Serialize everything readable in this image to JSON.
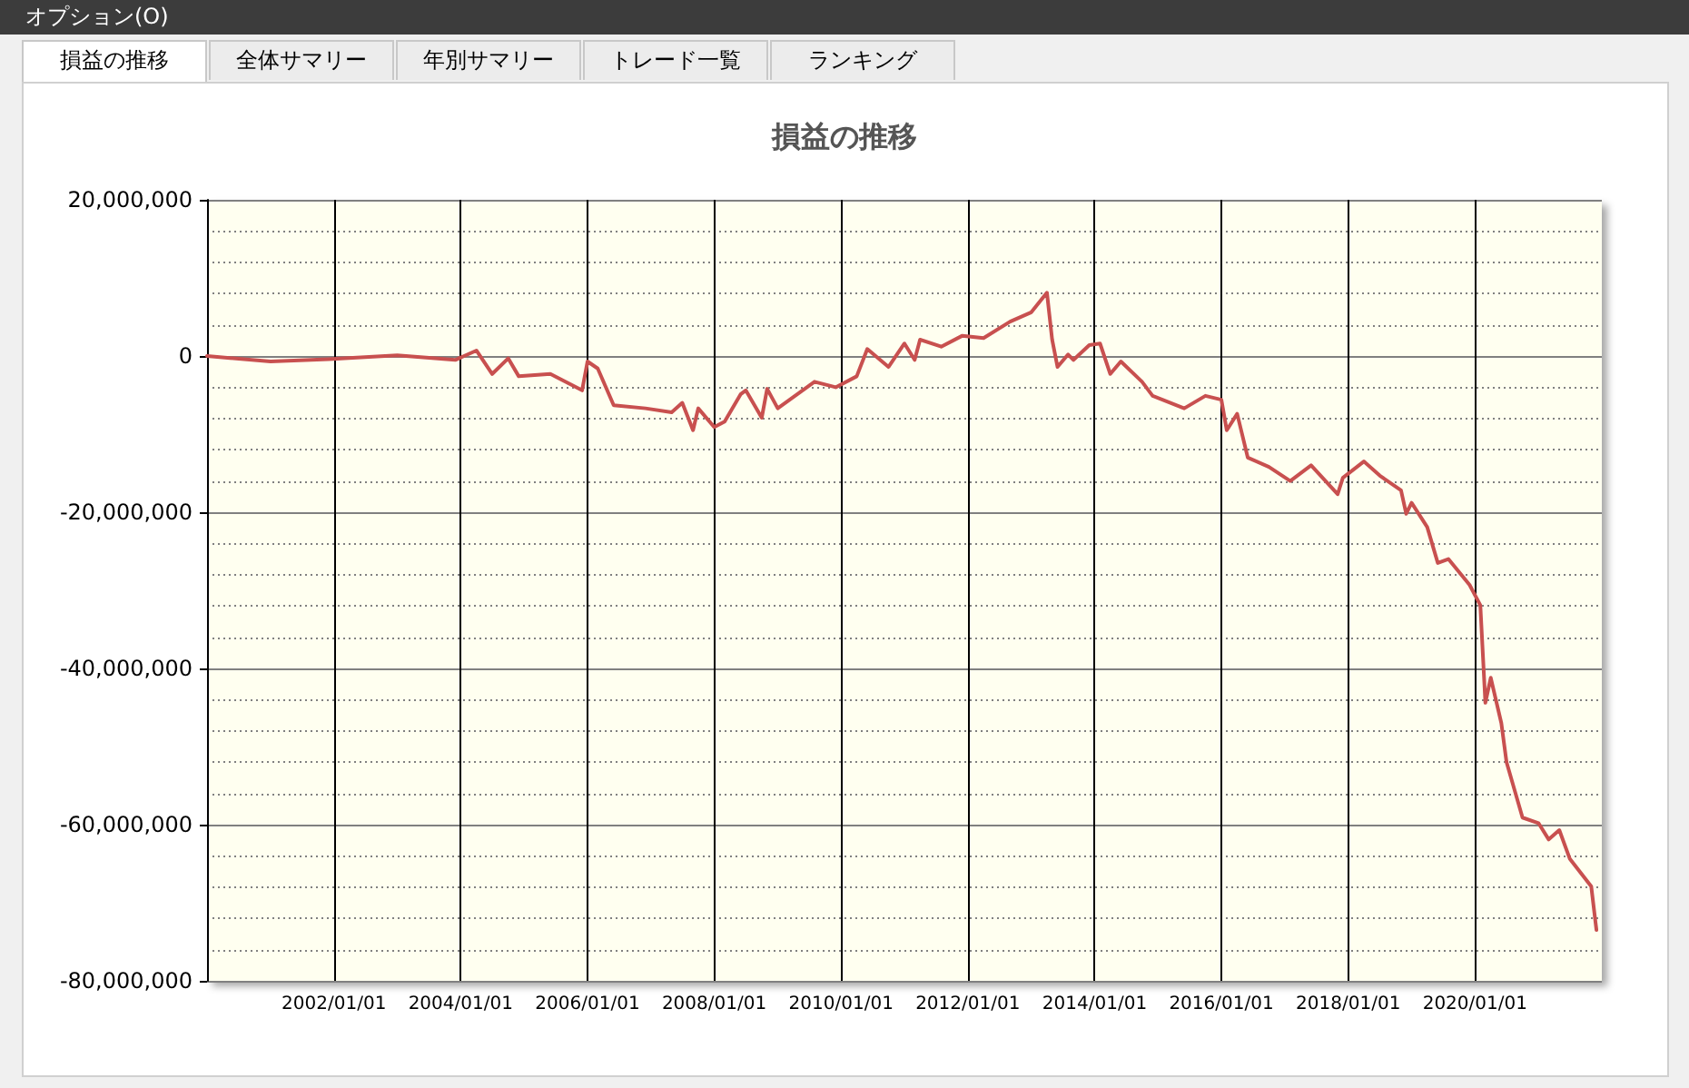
{
  "chart_data": {
    "type": "line",
    "title": "損益の推移",
    "annotations": [
      "オプション(O)",
      "損益の推移",
      "全体サマリー",
      "年別サマリー",
      "トレード一覧",
      "ランキング"
    ],
    "x": [
      "2000-01",
      "2001-01",
      "2001-12",
      "2003-01",
      "2003-12",
      "2004-04",
      "2004-07",
      "2004-10",
      "2004-12",
      "2005-06",
      "2005-12",
      "2006-01",
      "2006-03",
      "2006-06",
      "2006-12",
      "2007-05",
      "2007-07",
      "2007-09",
      "2007-10",
      "2008-01",
      "2008-03",
      "2008-06",
      "2008-07",
      "2008-10",
      "2008-11",
      "2009-01",
      "2009-08",
      "2009-12",
      "2010-04",
      "2010-06",
      "2010-10",
      "2011-01",
      "2011-03",
      "2011-04",
      "2011-08",
      "2011-12",
      "2012-04",
      "2012-09",
      "2013-01",
      "2013-04",
      "2013-05",
      "2013-06",
      "2013-08",
      "2013-09",
      "2013-12",
      "2014-02",
      "2014-04",
      "2014-06",
      "2014-10",
      "2014-12",
      "2015-06",
      "2015-10",
      "2016-01",
      "2016-02",
      "2016-04",
      "2016-06",
      "2016-10",
      "2017-02",
      "2017-06",
      "2017-11",
      "2017-12",
      "2018-04",
      "2018-07",
      "2018-11",
      "2018-12",
      "2019-01",
      "2019-04",
      "2019-06",
      "2019-08",
      "2019-12",
      "2020-02",
      "2020-03",
      "2020-04",
      "2020-06",
      "2020-07",
      "2020-10",
      "2021-01",
      "2021-03",
      "2021-05",
      "2021-07",
      "2021-11",
      "2021-12"
    ],
    "series": [
      {
        "color": "#c8504f",
        "values": [
          0,
          -700000,
          -400000,
          100000,
          -500000,
          700000,
          -2300000,
          -300000,
          -2600000,
          -2300000,
          -4400000,
          -700000,
          -1600000,
          -6300000,
          -6700000,
          -7200000,
          -6000000,
          -9500000,
          -6700000,
          -9100000,
          -8400000,
          -4900000,
          -4400000,
          -7900000,
          -4200000,
          -6700000,
          -3300000,
          -4000000,
          -2600000,
          900000,
          -1400000,
          1600000,
          -500000,
          2100000,
          1200000,
          2600000,
          2300000,
          4400000,
          5600000,
          8100000,
          2100000,
          -1400000,
          200000,
          -500000,
          1400000,
          1600000,
          -2300000,
          -700000,
          -3300000,
          -5100000,
          -6700000,
          -5100000,
          -5600000,
          -9500000,
          -7400000,
          -13000000,
          -14200000,
          -16000000,
          -14000000,
          -17700000,
          -15600000,
          -13500000,
          -15300000,
          -17200000,
          -20200000,
          -18800000,
          -21900000,
          -26500000,
          -26000000,
          -29300000,
          -31900000,
          -44400000,
          -41200000,
          -47000000,
          -52000000,
          -59100000,
          -59800000,
          -61900000,
          -60700000,
          -64400000,
          -67900000,
          -73500000
        ]
      }
    ],
    "xlim": [
      "2000-01-01",
      "2022-01-01"
    ],
    "xticks": [
      {
        "value": "2002-01-01",
        "label": "2002/01/01"
      },
      {
        "value": "2004-01-01",
        "label": "2004/01/01"
      },
      {
        "value": "2006-01-01",
        "label": "2006/01/01"
      },
      {
        "value": "2008-01-01",
        "label": "2008/01/01"
      },
      {
        "value": "2010-01-01",
        "label": "2010/01/01"
      },
      {
        "value": "2012-01-01",
        "label": "2012/01/01"
      },
      {
        "value": "2014-01-01",
        "label": "2014/01/01"
      },
      {
        "value": "2016-01-01",
        "label": "2016/01/01"
      },
      {
        "value": "2018-01-01",
        "label": "2018/01/01"
      },
      {
        "value": "2020-01-01",
        "label": "2020/01/01"
      }
    ],
    "ylim": [
      -80000000,
      20000000
    ],
    "yticks": [
      {
        "value": -80000000,
        "label": "-80,000,000"
      },
      {
        "value": -76000000,
        "label": null
      },
      {
        "value": -72000000,
        "label": null
      },
      {
        "value": -68000000,
        "label": null
      },
      {
        "value": -64000000,
        "label": null
      },
      {
        "value": -60000000,
        "label": "-60,000,000"
      },
      {
        "value": -56000000,
        "label": null
      },
      {
        "value": -52000000,
        "label": null
      },
      {
        "value": -48000000,
        "label": null
      },
      {
        "value": -44000000,
        "label": null
      },
      {
        "value": -40000000,
        "label": "-40,000,000"
      },
      {
        "value": -36000000,
        "label": null
      },
      {
        "value": -32000000,
        "label": null
      },
      {
        "value": -28000000,
        "label": null
      },
      {
        "value": -24000000,
        "label": null
      },
      {
        "value": -20000000,
        "label": "-20,000,000"
      },
      {
        "value": -16000000,
        "label": null
      },
      {
        "value": -12000000,
        "label": null
      },
      {
        "value": -8000000,
        "label": null
      },
      {
        "value": -4000000,
        "label": null
      },
      {
        "value": 0,
        "label": "0"
      },
      {
        "value": 4000000,
        "label": null
      },
      {
        "value": 8000000,
        "label": null
      },
      {
        "value": 12000000,
        "label": null
      },
      {
        "value": 16000000,
        "label": null
      },
      {
        "value": 20000000,
        "label": "20,000,000"
      }
    ],
    "grid": true,
    "marker": "none",
    "line_style": "solid"
  }
}
